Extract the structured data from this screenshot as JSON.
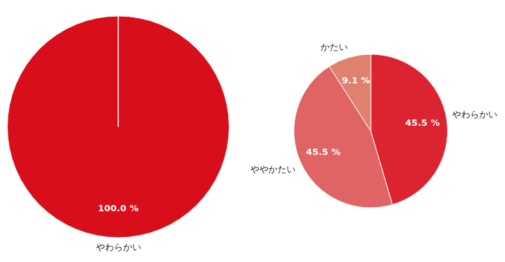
{
  "chart_data": [
    {
      "type": "pie",
      "categories": [
        "やわらかい"
      ],
      "values": [
        100
      ],
      "value_labels": [
        "100.0 %"
      ],
      "colors": [
        "#d80f1b"
      ],
      "data_labels": true
    },
    {
      "type": "pie",
      "categories": [
        "やわらかい",
        "ややかたい",
        "かたい"
      ],
      "values": [
        45.5,
        45.5,
        9.1
      ],
      "value_labels": [
        "45.5 %",
        "45.5 %",
        "9.1 %"
      ],
      "colors": [
        "#dc2430",
        "#e06464",
        "#e0806e"
      ],
      "data_labels": true
    }
  ]
}
